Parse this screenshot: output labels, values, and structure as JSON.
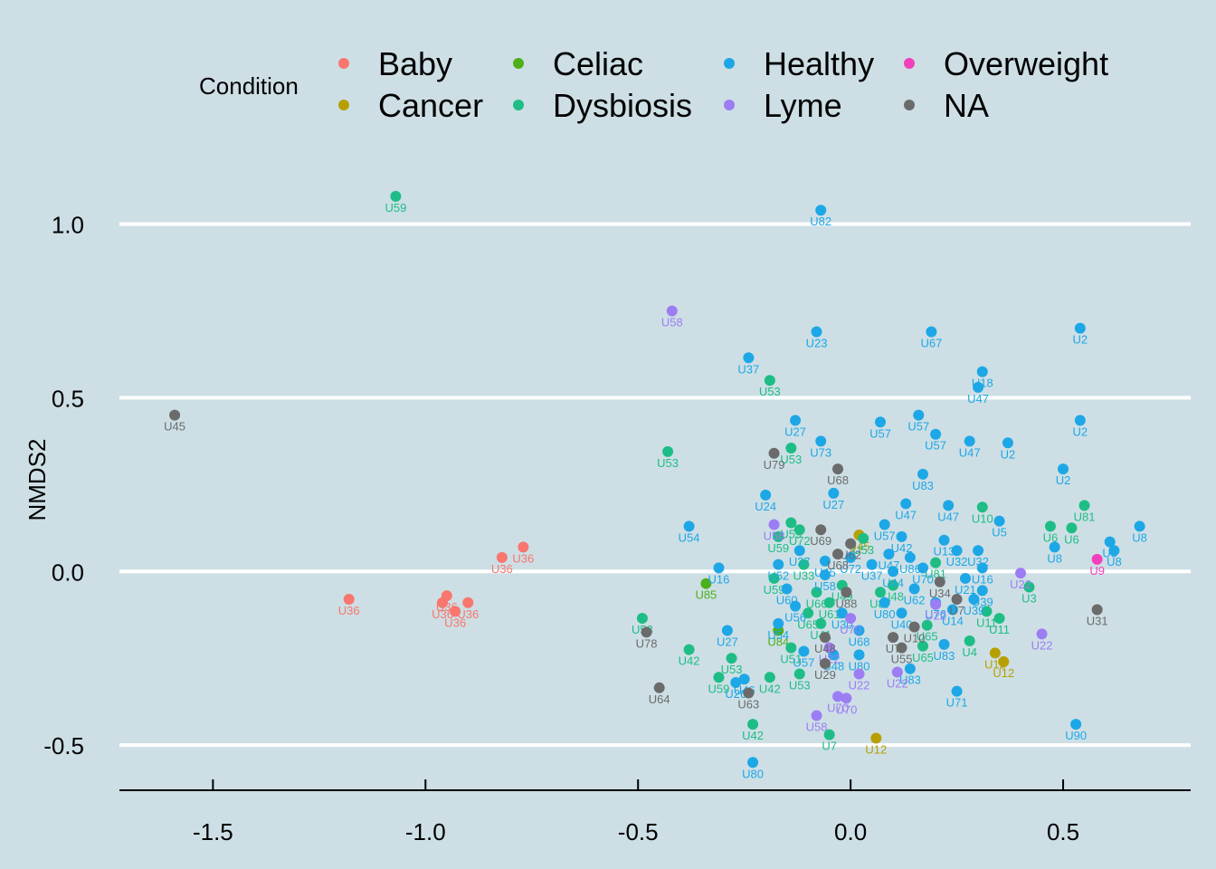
{
  "chart_data": {
    "type": "scatter",
    "title": "",
    "xlabel": "",
    "ylabel": "NMDS2",
    "xlim": [
      -1.72,
      0.8
    ],
    "ylim": [
      -0.63,
      1.15
    ],
    "x_ticks": [
      -1.5,
      -1.0,
      -0.5,
      0.0,
      0.5
    ],
    "x_tick_labels": [
      "-1.5",
      "-1.0",
      "-0.5",
      "0.0",
      "0.5"
    ],
    "y_ticks": [
      -0.5,
      0.0,
      0.5,
      1.0
    ],
    "y_tick_labels": [
      "-0.5",
      "0.0",
      "0.5",
      "1.0"
    ],
    "grid": "horizontal major",
    "legend": {
      "title": "Condition",
      "position": "top",
      "entries": [
        {
          "name": "Baby",
          "color": "#f8766d"
        },
        {
          "name": "Cancer",
          "color": "#b79f00"
        },
        {
          "name": "Celiac",
          "color": "#4daf1a"
        },
        {
          "name": "Dysbiosis",
          "color": "#1ebd85"
        },
        {
          "name": "Healthy",
          "color": "#1da7e6"
        },
        {
          "name": "Lyme",
          "color": "#9d7df4"
        },
        {
          "name": "Overweight",
          "color": "#f23fbc"
        },
        {
          "name": "NA",
          "color": "#6b6b6b"
        }
      ]
    },
    "series": [
      {
        "name": "Baby",
        "points": [
          {
            "x": -1.18,
            "y": -0.08,
            "label": "U36"
          },
          {
            "x": -0.96,
            "y": -0.09,
            "label": "U36"
          },
          {
            "x": -0.95,
            "y": -0.07,
            "label": "U36"
          },
          {
            "x": -0.93,
            "y": -0.115,
            "label": "U36"
          },
          {
            "x": -0.9,
            "y": -0.09,
            "label": "U36"
          },
          {
            "x": -0.82,
            "y": 0.04,
            "label": "U36"
          },
          {
            "x": -0.77,
            "y": 0.07,
            "label": "U36"
          }
        ]
      },
      {
        "name": "Cancer",
        "points": [
          {
            "x": 0.02,
            "y": 0.105,
            "label": "U45"
          },
          {
            "x": 0.06,
            "y": -0.48,
            "label": "U12"
          },
          {
            "x": 0.34,
            "y": -0.235,
            "label": "U12"
          },
          {
            "x": 0.36,
            "y": -0.26,
            "label": "U12"
          }
        ]
      },
      {
        "name": "Celiac",
        "points": [
          {
            "x": -0.34,
            "y": -0.035,
            "label": "U85"
          },
          {
            "x": -0.17,
            "y": -0.17,
            "label": "U84"
          }
        ]
      },
      {
        "name": "Dysbiosis",
        "points": [
          {
            "x": -1.07,
            "y": 1.08,
            "label": "U59"
          },
          {
            "x": -0.19,
            "y": 0.55,
            "label": "U53"
          },
          {
            "x": -0.43,
            "y": 0.345,
            "label": "U53"
          },
          {
            "x": -0.14,
            "y": 0.355,
            "label": "U53"
          },
          {
            "x": -0.49,
            "y": -0.135,
            "label": "U53"
          },
          {
            "x": -0.38,
            "y": -0.225,
            "label": "U42"
          },
          {
            "x": -0.28,
            "y": -0.25,
            "label": "U53"
          },
          {
            "x": -0.31,
            "y": -0.305,
            "label": "U59"
          },
          {
            "x": -0.19,
            "y": -0.305,
            "label": "U42"
          },
          {
            "x": -0.23,
            "y": -0.44,
            "label": "U42"
          },
          {
            "x": -0.12,
            "y": -0.295,
            "label": "U53"
          },
          {
            "x": -0.05,
            "y": -0.47,
            "label": "U7"
          },
          {
            "x": -0.17,
            "y": 0.1,
            "label": "U59"
          },
          {
            "x": -0.14,
            "y": 0.14,
            "label": "U59"
          },
          {
            "x": -0.12,
            "y": 0.12,
            "label": "U72"
          },
          {
            "x": -0.18,
            "y": -0.02,
            "label": "U59"
          },
          {
            "x": -0.14,
            "y": -0.22,
            "label": "U51"
          },
          {
            "x": -0.1,
            "y": -0.12,
            "label": "U65"
          },
          {
            "x": 0.03,
            "y": 0.095,
            "label": "U53"
          },
          {
            "x": 0.18,
            "y": -0.155,
            "label": "U65"
          },
          {
            "x": 0.17,
            "y": -0.215,
            "label": "U65"
          },
          {
            "x": 0.2,
            "y": 0.025,
            "label": "U81"
          },
          {
            "x": 0.28,
            "y": -0.2,
            "label": "U4"
          },
          {
            "x": 0.31,
            "y": 0.185,
            "label": "U10"
          },
          {
            "x": 0.32,
            "y": -0.115,
            "label": "U11"
          },
          {
            "x": 0.35,
            "y": -0.135,
            "label": "U11"
          },
          {
            "x": 0.42,
            "y": -0.045,
            "label": "U3"
          },
          {
            "x": 0.47,
            "y": 0.13,
            "label": "U6"
          },
          {
            "x": 0.52,
            "y": 0.125,
            "label": "U6"
          },
          {
            "x": 0.55,
            "y": 0.19,
            "label": "U81"
          },
          {
            "x": -0.08,
            "y": -0.06,
            "label": "U66"
          },
          {
            "x": -0.05,
            "y": -0.09,
            "label": "U61"
          },
          {
            "x": -0.02,
            "y": -0.04,
            "label": "U49"
          },
          {
            "x": 0.07,
            "y": -0.06,
            "label": "U87"
          },
          {
            "x": 0.1,
            "y": -0.04,
            "label": "U48"
          },
          {
            "x": -0.11,
            "y": 0.02,
            "label": "U33"
          },
          {
            "x": -0.07,
            "y": -0.15,
            "label": "U41"
          }
        ]
      },
      {
        "name": "Healthy",
        "points": [
          {
            "x": -0.07,
            "y": 1.04,
            "label": "U82"
          },
          {
            "x": -0.08,
            "y": 0.69,
            "label": "U23"
          },
          {
            "x": 0.19,
            "y": 0.69,
            "label": "U67"
          },
          {
            "x": 0.54,
            "y": 0.7,
            "label": "U2"
          },
          {
            "x": -0.24,
            "y": 0.615,
            "label": "U37"
          },
          {
            "x": 0.31,
            "y": 0.575,
            "label": "U18"
          },
          {
            "x": 0.3,
            "y": 0.53,
            "label": "U47"
          },
          {
            "x": -0.13,
            "y": 0.435,
            "label": "U27"
          },
          {
            "x": 0.07,
            "y": 0.43,
            "label": "U57"
          },
          {
            "x": 0.16,
            "y": 0.45,
            "label": "U57"
          },
          {
            "x": 0.2,
            "y": 0.395,
            "label": "U57"
          },
          {
            "x": 0.54,
            "y": 0.435,
            "label": "U2"
          },
          {
            "x": -0.07,
            "y": 0.375,
            "label": "U73"
          },
          {
            "x": 0.28,
            "y": 0.375,
            "label": "U47"
          },
          {
            "x": 0.37,
            "y": 0.37,
            "label": "U2"
          },
          {
            "x": 0.5,
            "y": 0.295,
            "label": "U2"
          },
          {
            "x": 0.17,
            "y": 0.28,
            "label": "U83"
          },
          {
            "x": -0.04,
            "y": 0.225,
            "label": "U27"
          },
          {
            "x": -0.2,
            "y": 0.22,
            "label": "U24"
          },
          {
            "x": 0.13,
            "y": 0.195,
            "label": "U47"
          },
          {
            "x": 0.23,
            "y": 0.19,
            "label": "U47"
          },
          {
            "x": -0.38,
            "y": 0.13,
            "label": "U54"
          },
          {
            "x": 0.08,
            "y": 0.135,
            "label": "U57"
          },
          {
            "x": 0.12,
            "y": 0.1,
            "label": "U42"
          },
          {
            "x": 0.22,
            "y": 0.09,
            "label": "U13"
          },
          {
            "x": 0.35,
            "y": 0.145,
            "label": "U5"
          },
          {
            "x": 0.48,
            "y": 0.07,
            "label": "U8"
          },
          {
            "x": 0.61,
            "y": 0.085,
            "label": "U8"
          },
          {
            "x": 0.62,
            "y": 0.06,
            "label": "U8"
          },
          {
            "x": 0.68,
            "y": 0.13,
            "label": "U8"
          },
          {
            "x": -0.31,
            "y": 0.01,
            "label": "U16"
          },
          {
            "x": -0.17,
            "y": 0.02,
            "label": "U52"
          },
          {
            "x": 0.25,
            "y": 0.06,
            "label": "U32"
          },
          {
            "x": 0.3,
            "y": 0.06,
            "label": "U32"
          },
          {
            "x": 0.31,
            "y": 0.01,
            "label": "U16"
          },
          {
            "x": 0.27,
            "y": -0.02,
            "label": "U21"
          },
          {
            "x": 0.29,
            "y": -0.08,
            "label": "U39"
          },
          {
            "x": 0.31,
            "y": -0.055,
            "label": "U39"
          },
          {
            "x": -0.29,
            "y": -0.17,
            "label": "U27"
          },
          {
            "x": -0.17,
            "y": -0.15,
            "label": "U54"
          },
          {
            "x": -0.11,
            "y": -0.23,
            "label": "U57"
          },
          {
            "x": -0.27,
            "y": -0.32,
            "label": "U26"
          },
          {
            "x": -0.25,
            "y": -0.31,
            "label": "U46"
          },
          {
            "x": -0.04,
            "y": -0.24,
            "label": "U48"
          },
          {
            "x": 0.02,
            "y": -0.24,
            "label": "U80"
          },
          {
            "x": 0.14,
            "y": -0.28,
            "label": "U83"
          },
          {
            "x": 0.22,
            "y": -0.21,
            "label": "U83"
          },
          {
            "x": 0.25,
            "y": -0.345,
            "label": "U71"
          },
          {
            "x": 0.53,
            "y": -0.44,
            "label": "U90"
          },
          {
            "x": -0.23,
            "y": -0.55,
            "label": "U80"
          },
          {
            "x": -0.12,
            "y": 0.06,
            "label": "U27"
          },
          {
            "x": -0.06,
            "y": 0.03,
            "label": "U45"
          },
          {
            "x": 0.0,
            "y": 0.04,
            "label": "U72"
          },
          {
            "x": 0.05,
            "y": 0.02,
            "label": "U37"
          },
          {
            "x": 0.09,
            "y": 0.05,
            "label": "U47"
          },
          {
            "x": 0.14,
            "y": 0.04,
            "label": "U86"
          },
          {
            "x": 0.17,
            "y": 0.01,
            "label": "U70"
          },
          {
            "x": 0.15,
            "y": -0.05,
            "label": "U62"
          },
          {
            "x": 0.2,
            "y": -0.09,
            "label": "U76"
          },
          {
            "x": 0.24,
            "y": -0.11,
            "label": "U14"
          },
          {
            "x": 0.12,
            "y": -0.12,
            "label": "U40"
          },
          {
            "x": 0.08,
            "y": -0.09,
            "label": "U80"
          },
          {
            "x": -0.02,
            "y": -0.12,
            "label": "U30"
          },
          {
            "x": -0.15,
            "y": -0.05,
            "label": "U60"
          },
          {
            "x": -0.06,
            "y": -0.01,
            "label": "U58"
          },
          {
            "x": 0.02,
            "y": -0.17,
            "label": "U68"
          },
          {
            "x": -0.13,
            "y": -0.1,
            "label": "U56"
          },
          {
            "x": 0.1,
            "y": 0.0,
            "label": "U44"
          }
        ]
      },
      {
        "name": "Lyme",
        "points": [
          {
            "x": -0.42,
            "y": 0.75,
            "label": "U58"
          },
          {
            "x": -0.18,
            "y": 0.135,
            "label": "U58"
          },
          {
            "x": 0.4,
            "y": -0.005,
            "label": "U22"
          },
          {
            "x": 0.45,
            "y": -0.18,
            "label": "U22"
          },
          {
            "x": -0.05,
            "y": -0.22,
            "label": "U22"
          },
          {
            "x": 0.02,
            "y": -0.295,
            "label": "U22"
          },
          {
            "x": 0.11,
            "y": -0.29,
            "label": "U22"
          },
          {
            "x": -0.03,
            "y": -0.36,
            "label": "U70"
          },
          {
            "x": -0.01,
            "y": -0.365,
            "label": "U70"
          },
          {
            "x": -0.08,
            "y": -0.415,
            "label": "U58"
          },
          {
            "x": 0.2,
            "y": -0.095,
            "label": "U22"
          },
          {
            "x": 0.0,
            "y": -0.135,
            "label": "U70"
          }
        ]
      },
      {
        "name": "Overweight",
        "points": [
          {
            "x": 0.58,
            "y": 0.035,
            "label": "U9"
          }
        ]
      },
      {
        "name": "NA",
        "points": [
          {
            "x": -1.59,
            "y": 0.45,
            "label": "U45"
          },
          {
            "x": -0.18,
            "y": 0.34,
            "label": "U79"
          },
          {
            "x": -0.03,
            "y": 0.295,
            "label": "U68"
          },
          {
            "x": -0.07,
            "y": 0.12,
            "label": "U69"
          },
          {
            "x": -0.48,
            "y": -0.175,
            "label": "U78"
          },
          {
            "x": -0.45,
            "y": -0.335,
            "label": "U64"
          },
          {
            "x": -0.24,
            "y": -0.35,
            "label": "U63"
          },
          {
            "x": -0.06,
            "y": -0.265,
            "label": "U29"
          },
          {
            "x": 0.12,
            "y": -0.22,
            "label": "U55"
          },
          {
            "x": 0.1,
            "y": -0.19,
            "label": "U7"
          },
          {
            "x": 0.15,
            "y": -0.16,
            "label": "U10"
          },
          {
            "x": 0.25,
            "y": -0.08,
            "label": "U7"
          },
          {
            "x": 0.21,
            "y": -0.03,
            "label": "U34"
          },
          {
            "x": 0.58,
            "y": -0.11,
            "label": "U31"
          },
          {
            "x": -0.03,
            "y": 0.05,
            "label": "U68"
          },
          {
            "x": 0.0,
            "y": 0.08,
            "label": "U62"
          },
          {
            "x": -0.01,
            "y": -0.06,
            "label": "U88"
          },
          {
            "x": -0.06,
            "y": -0.19,
            "label": "U48"
          }
        ]
      }
    ]
  }
}
